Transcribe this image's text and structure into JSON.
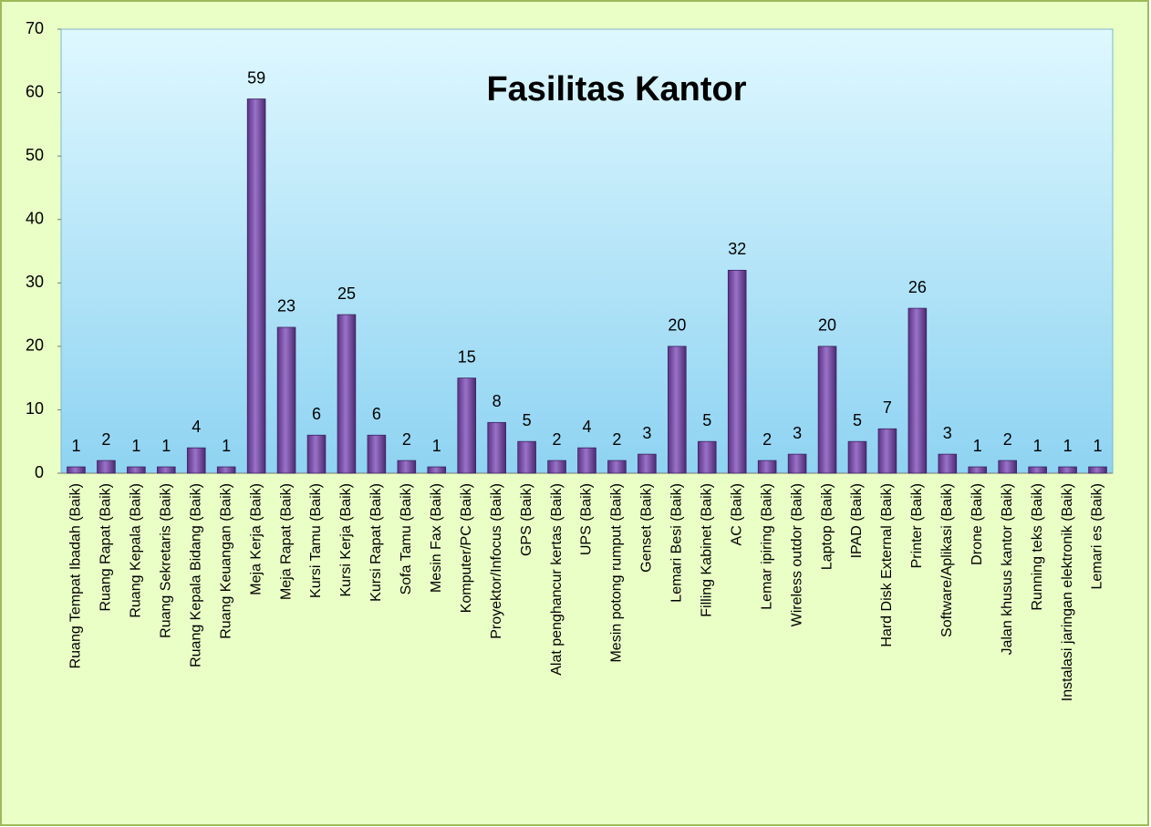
{
  "chart_data": {
    "type": "bar",
    "title": "Fasilitas Kantor",
    "categories": [
      "Ruang Tempat Ibadah (Baik)",
      "Ruang Rapat (Baik)",
      "Ruang Kepala (Baik)",
      "Ruang Sekretaris (Baik)",
      "Ruang Kepala Bidang (Baik)",
      "Ruang Keuangan (Baik)",
      "Meja Kerja (Baik)",
      "Meja Rapat (Baik)",
      "Kursi Tamu (Baik)",
      "Kursi Kerja (Baik)",
      "Kursi Rapat (Baik)",
      "Sofa Tamu (Baik)",
      "Mesin Fax (Baik)",
      "Komputer/PC (Baik)",
      "Proyektor/Infocus (Baik)",
      "GPS (Baik)",
      "Alat penghancur kertas (Baik)",
      "UPS (Baik)",
      "Mesin potong rumput (Baik)",
      "Genset (Baik)",
      "Lemari Besi (Baik)",
      "Filling Kabinet (Baik)",
      "AC (Baik)",
      "Lemar ipiring (Baik)",
      "Wireless outdor (Baik)",
      "Laptop (Baik)",
      "IPAD (Baik)",
      "Hard Disk External (Baik)",
      "Printer (Baik)",
      "Software/Aplikasi (Baik)",
      "Drone (Baik)",
      "Jalan khusus kantor (Baik)",
      "Running teks (Baik)",
      "Instalasi jaringan elektronik (Baik)",
      "Lemari es (Baik)"
    ],
    "values": [
      1,
      2,
      1,
      1,
      4,
      1,
      59,
      23,
      6,
      25,
      6,
      2,
      1,
      15,
      8,
      5,
      2,
      4,
      2,
      3,
      20,
      5,
      32,
      2,
      3,
      20,
      5,
      7,
      26,
      3,
      1,
      2,
      1,
      1,
      1
    ],
    "color": "#7b4fa8",
    "ylim": [
      0,
      70
    ],
    "yticks": [
      0,
      10,
      20,
      30,
      40,
      50,
      60,
      70
    ],
    "grid": false
  }
}
